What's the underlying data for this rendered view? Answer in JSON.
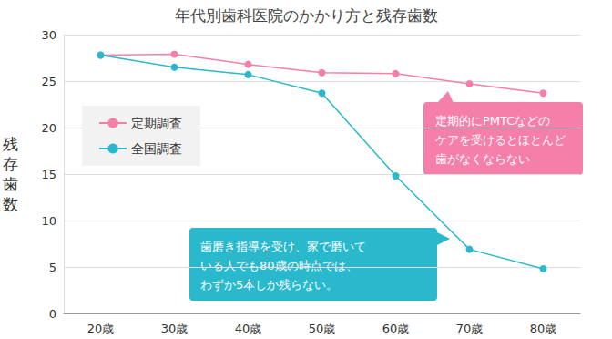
{
  "chart_data": {
    "type": "line",
    "title": "年代別歯科医院のかかり方と残存歯数",
    "y_label": "残存歯数",
    "categories": [
      "20歳",
      "30歳",
      "40歳",
      "50歳",
      "60歳",
      "70歳",
      "80歳"
    ],
    "series": [
      {
        "name": "定期調査",
        "color": "#f57fa9",
        "values": [
          27.8,
          27.9,
          26.8,
          25.9,
          25.8,
          24.7,
          23.7
        ]
      },
      {
        "name": "全国調査",
        "color": "#2ab8cc",
        "values": [
          27.8,
          26.5,
          25.7,
          23.7,
          14.8,
          6.9,
          4.8
        ]
      }
    ],
    "ylim": [
      0,
      30
    ],
    "yticks": [
      0,
      5,
      10,
      15,
      20,
      25,
      30
    ],
    "grid": true,
    "legend": "upper left",
    "marker": "circle",
    "annotations": [
      "定期的にPMTCなどの\nケアを受けるとほとんど\n歯がなくならない",
      "歯磨き指導を受け、家で磨いて\nいる人でも80歳の時点では、\nわずか5本しか残らない。"
    ]
  }
}
